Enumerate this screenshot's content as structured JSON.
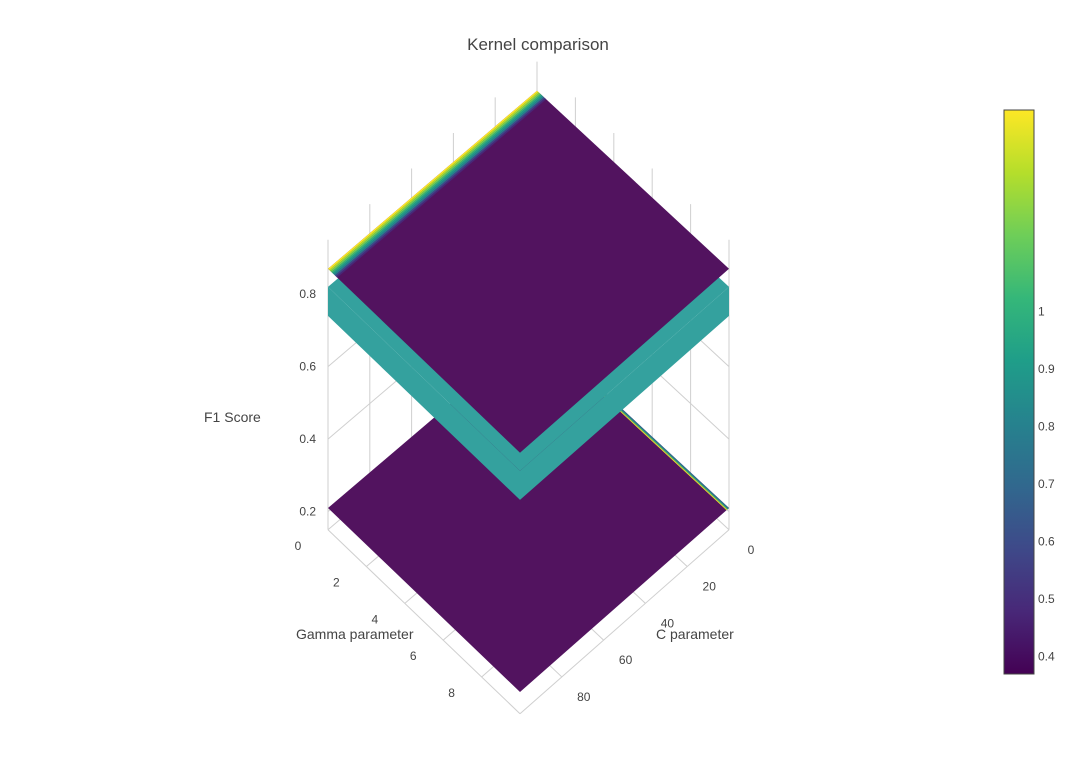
{
  "chart_data": {
    "type": "surface3d",
    "title": "Kernel comparison",
    "x_axis": {
      "title": "C parameter",
      "range": [
        0,
        100
      ],
      "ticks": [
        0,
        20,
        40,
        60,
        80
      ]
    },
    "y_axis": {
      "title": "Gamma parameter",
      "range": [
        0,
        10
      ],
      "ticks": [
        0,
        2,
        4,
        6,
        8
      ]
    },
    "z_axis": {
      "title": "F1 Score",
      "range": [
        0.15,
        0.95
      ],
      "ticks": [
        0.2,
        0.4,
        0.6,
        0.8
      ]
    },
    "grid": true,
    "colorscale": "viridis",
    "colorbar": {
      "placement": "right",
      "ticks": [
        0.4,
        0.5,
        0.6,
        0.7,
        0.8,
        0.9,
        1
      ],
      "range": [
        0.37,
        1.35
      ]
    },
    "surfaces": [
      {
        "level_z": 0.21,
        "fill_color": "#52135f",
        "edge_bands": [
          "#2d708e",
          "#21918c",
          "#5ec962",
          "#fde725"
        ]
      },
      {
        "level_z": 0.82,
        "fill_color": "#34a19e",
        "edge_bands": []
      },
      {
        "level_z": 0.87,
        "fill_color": "#52135f",
        "edge_bands": [
          "#fde725",
          "#b5de2b",
          "#6ece58",
          "#35b779",
          "#1f9e89",
          "#26828e",
          "#3e4989",
          "#482878"
        ]
      }
    ],
    "colors": {
      "viridis_stops": [
        "#440154",
        "#482878",
        "#3e4989",
        "#31688e",
        "#26828e",
        "#1f9e89",
        "#35b779",
        "#6ece58",
        "#b5de2b",
        "#fde725"
      ]
    }
  }
}
